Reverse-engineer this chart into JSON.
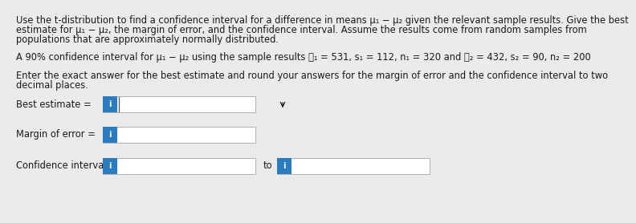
{
  "bg_color": "#ebebeb",
  "text_color": "#1a1a1a",
  "line1": "Use the t-distribution to find a confidence interval for a difference in means μ₁ − μ₂ given the relevant sample results. Give the best",
  "line2": "estimate for μ₁ − μ₂, the margin of error, and the confidence interval. Assume the results come from random samples from",
  "line3": "populations that are approximately normally distributed.",
  "line4": "A 90% confidence interval for μ₁ − μ₂ using the sample results ᶋ₁ = 531, s₁ = 112, n₁ = 320 and ᶋ₂ = 432, s₂ = 90, n₂ = 200",
  "line5": "Enter the exact answer for the best estimate and round your answers for the margin of error and the confidence interval to two",
  "line6": "decimal places.",
  "label1": "Best estimate =",
  "label2": "Margin of error =",
  "label3": "Confidence interval :",
  "to_text": "to",
  "icon_color": "#2b7bbf",
  "icon_text": "i",
  "font_size": 8.3,
  "box_edge_color": "#b0b0b0",
  "cursor_color": "#555555"
}
